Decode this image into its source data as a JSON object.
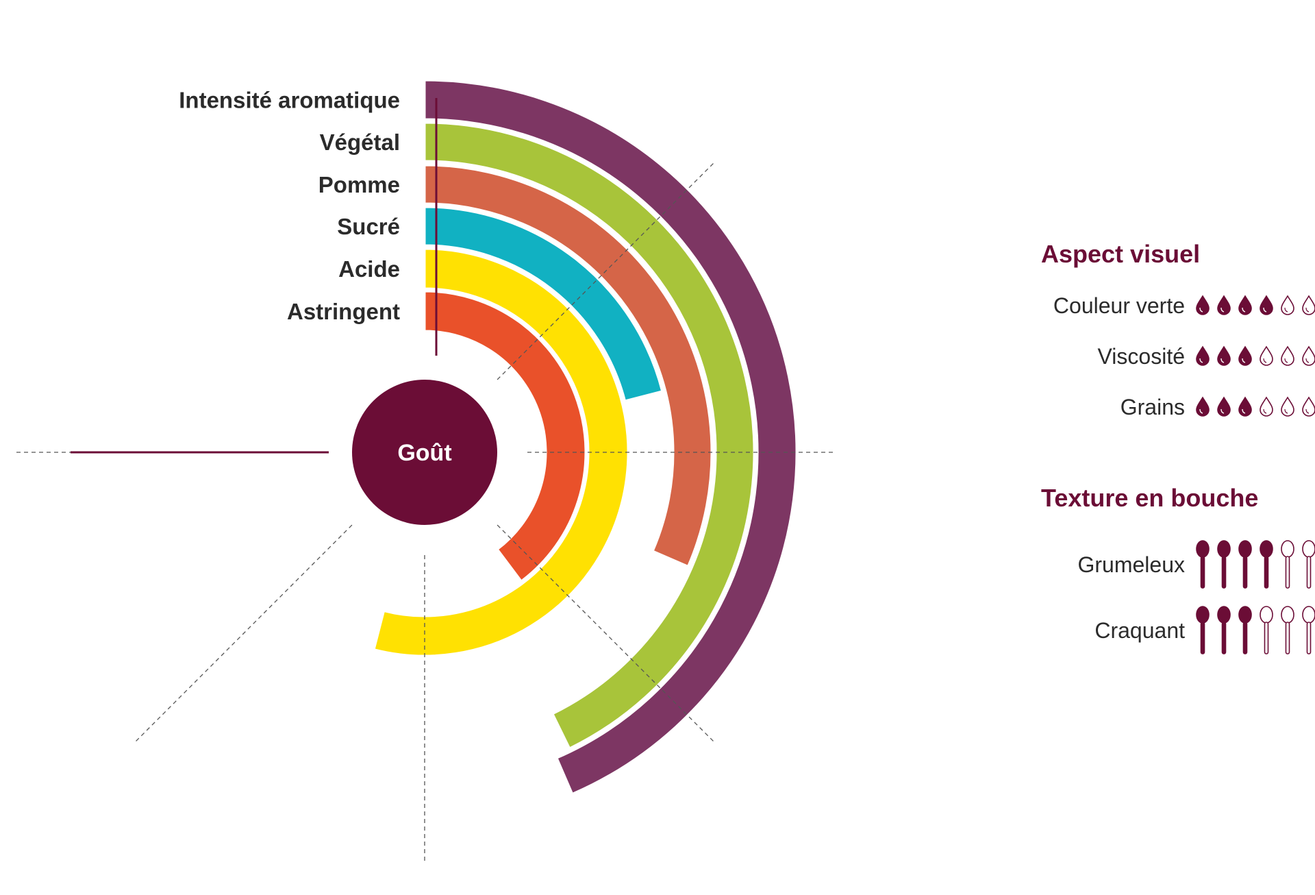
{
  "colors": {
    "brand": "#6b0d36",
    "ring_intensite": "#7d3663",
    "ring_vegetal": "#a8c43a",
    "ring_pomme": "#d56548",
    "ring_sucre": "#11b1c2",
    "ring_acide": "#ffe102",
    "ring_astringent": "#e9512a"
  },
  "chart_data": {
    "type": "radial-bar",
    "center_label": "Goût",
    "categories": [
      "Intensité aromatique",
      "Végétal",
      "Pomme",
      "Sucré",
      "Acide",
      "Astringent"
    ],
    "series": [
      {
        "name": "Intensité aromatique",
        "value": 0.58,
        "color": "#7d3663"
      },
      {
        "name": "Végétal",
        "value": 0.57,
        "color": "#a8c43a"
      },
      {
        "name": "Pomme",
        "value": 0.42,
        "color": "#d56548"
      },
      {
        "name": "Sucré",
        "value": 0.28,
        "color": "#11b1c2"
      },
      {
        "name": "Acide",
        "value": 0.72,
        "color": "#ffe102"
      },
      {
        "name": "Astringent",
        "value": 0.53,
        "color": "#e9512a"
      }
    ],
    "scale_max": 1
  },
  "aspect_visuel": {
    "title": "Aspect visuel",
    "max": 7,
    "icon": "drop-icon",
    "items": [
      {
        "label": "Couleur verte",
        "value": 4
      },
      {
        "label": "Viscosité",
        "value": 3
      },
      {
        "label": "Grains",
        "value": 3
      }
    ]
  },
  "texture": {
    "title": "Texture en bouche",
    "max": 7,
    "icon": "spoon-icon",
    "items": [
      {
        "label": "Grumeleux",
        "value": 4
      },
      {
        "label": "Craquant",
        "value": 3
      }
    ]
  }
}
